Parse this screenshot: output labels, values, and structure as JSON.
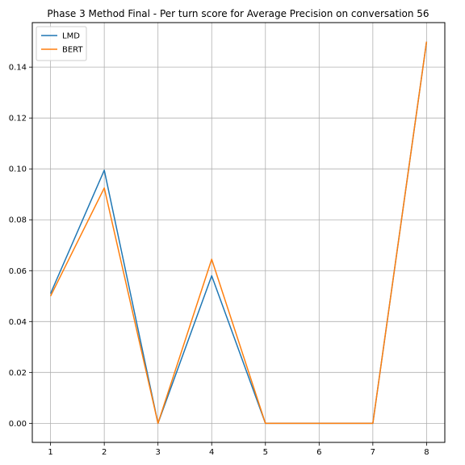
{
  "chart_data": {
    "type": "line",
    "title": "Phase 3 Method Final - Per turn score for Average Precision on conversation 56",
    "xlabel": "",
    "ylabel": "",
    "x": [
      1,
      2,
      3,
      4,
      5,
      6,
      7,
      8
    ],
    "xticks": [
      "1",
      "2",
      "3",
      "4",
      "5",
      "6",
      "7",
      "8"
    ],
    "yticks": [
      "0.00",
      "0.02",
      "0.04",
      "0.06",
      "0.08",
      "0.10",
      "0.12",
      "0.14"
    ],
    "xlim": [
      0.66,
      8.34
    ],
    "ylim": [
      -0.0075,
      0.1575
    ],
    "grid": true,
    "legend_position": "top-left",
    "series": [
      {
        "name": "LMD",
        "color": "#1f77b4",
        "values": [
          0.051,
          0.0995,
          0.0,
          0.058,
          0.0,
          0.0,
          0.0,
          0.15
        ]
      },
      {
        "name": "BERT",
        "color": "#ff7f0e",
        "values": [
          0.05,
          0.0925,
          0.0,
          0.0645,
          0.0,
          0.0,
          0.0,
          0.15
        ]
      }
    ]
  }
}
